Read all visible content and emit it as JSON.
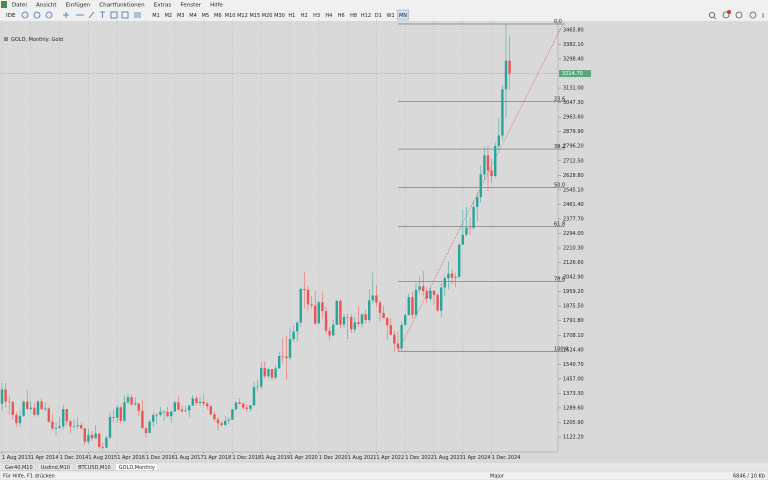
{
  "menu": [
    "Datei",
    "Ansicht",
    "Einfügen",
    "Chartfunktionen",
    "Extras",
    "Fenster",
    "Hilfe"
  ],
  "toolbar": {
    "ide": "IDE",
    "timeframes": [
      "M1",
      "M2",
      "M3",
      "M4",
      "M5",
      "M6",
      "M10",
      "M12",
      "M15",
      "M20",
      "M30",
      "H1",
      "H2",
      "H3",
      "H4",
      "H6",
      "H8",
      "H12",
      "D1",
      "W1",
      "MN"
    ],
    "active": 20
  },
  "tabs": [
    "Ger40,M10",
    "Usdind,M10",
    "BTCUSD,M10",
    "GOLD,Monthly"
  ],
  "active_tab": 3,
  "status": {
    "help": "Für Hilfe, F1 drücken",
    "profile": "Major",
    "traffic": "6846 / 10 Kb"
  },
  "chart_data": {
    "type": "candlestick",
    "title": "GOLD, Monthly:  Gold",
    "up_color": "#26a69a",
    "down_color": "#ef5350",
    "grid": true,
    "categories": [
      "1 Aug 2013",
      null,
      null,
      null,
      null,
      null,
      null,
      null,
      "1 Apr 2014",
      null,
      null,
      null,
      null,
      null,
      null,
      null,
      "1 Dec 2014",
      null,
      null,
      null,
      null,
      null,
      null,
      null,
      "1 Aug 2015",
      null,
      null,
      null,
      null,
      null,
      null,
      null,
      "1 Apr 2016",
      null,
      null,
      null,
      null,
      null,
      null,
      null,
      "1 Dec 2016",
      null,
      null,
      null,
      null,
      null,
      null,
      null,
      "1 Aug 2017",
      null,
      null,
      null,
      null,
      null,
      null,
      null,
      "1 Apr 2018",
      null,
      null,
      null,
      null,
      null,
      null,
      null,
      "1 Dec 2018",
      null,
      null,
      null,
      null,
      null,
      null,
      null,
      "1 Aug 2019",
      null,
      null,
      null,
      null,
      null,
      null,
      null,
      "1 Apr 2020",
      null,
      null,
      null,
      null,
      null,
      null,
      null,
      "1 Dec 2020",
      null,
      null,
      null,
      null,
      null,
      null,
      null,
      "1 Aug 2021",
      null,
      null,
      null,
      null,
      null,
      null,
      null,
      "1 Apr 2022",
      null,
      null,
      null,
      null,
      null,
      null,
      null,
      "1 Dec 2022",
      null,
      null,
      null,
      null,
      null,
      null,
      null,
      "1 Aug 2023",
      null,
      null,
      null,
      null,
      null,
      null,
      null,
      "1 Apr 2024",
      null,
      null,
      null,
      null,
      null,
      null,
      null,
      "1 Dec 2024",
      null,
      null,
      null,
      null,
      null
    ],
    "candles": [
      [
        1313,
        1433,
        1275,
        1396
      ],
      [
        1396,
        1434,
        1292,
        1326
      ],
      [
        1326,
        1361,
        1251,
        1323
      ],
      [
        1323,
        1330,
        1221,
        1250
      ],
      [
        1250,
        1267,
        1180,
        1202
      ],
      [
        1202,
        1280,
        1182,
        1244
      ],
      [
        1244,
        1332,
        1238,
        1326
      ],
      [
        1326,
        1392,
        1277,
        1284
      ],
      [
        1284,
        1331,
        1268,
        1291
      ],
      [
        1291,
        1315,
        1240,
        1250
      ],
      [
        1250,
        1332,
        1240,
        1327
      ],
      [
        1327,
        1345,
        1280,
        1282
      ],
      [
        1282,
        1322,
        1273,
        1287
      ],
      [
        1287,
        1294,
        1206,
        1210
      ],
      [
        1210,
        1256,
        1161,
        1171
      ],
      [
        1171,
        1208,
        1131,
        1175
      ],
      [
        1175,
        1239,
        1170,
        1184
      ],
      [
        1184,
        1307,
        1167,
        1283
      ],
      [
        1283,
        1285,
        1190,
        1213
      ],
      [
        1213,
        1224,
        1142,
        1183
      ],
      [
        1183,
        1224,
        1168,
        1184
      ],
      [
        1184,
        1232,
        1170,
        1190
      ],
      [
        1190,
        1205,
        1162,
        1172
      ],
      [
        1172,
        1175,
        1077,
        1095
      ],
      [
        1095,
        1170,
        1080,
        1134
      ],
      [
        1134,
        1157,
        1099,
        1115
      ],
      [
        1115,
        1191,
        1114,
        1142
      ],
      [
        1142,
        1143,
        1052,
        1065
      ],
      [
        1065,
        1088,
        1046,
        1061
      ],
      [
        1061,
        1128,
        1060,
        1118
      ],
      [
        1118,
        1263,
        1110,
        1238
      ],
      [
        1238,
        1283,
        1208,
        1233
      ],
      [
        1233,
        1304,
        1207,
        1293
      ],
      [
        1293,
        1303,
        1200,
        1215
      ],
      [
        1215,
        1362,
        1207,
        1322
      ],
      [
        1322,
        1375,
        1311,
        1351
      ],
      [
        1351,
        1367,
        1302,
        1309
      ],
      [
        1309,
        1353,
        1302,
        1316
      ],
      [
        1316,
        1318,
        1241,
        1273
      ],
      [
        1273,
        1337,
        1171,
        1173
      ],
      [
        1173,
        1180,
        1123,
        1146
      ],
      [
        1146,
        1220,
        1144,
        1211
      ],
      [
        1211,
        1264,
        1180,
        1249
      ],
      [
        1249,
        1261,
        1195,
        1249
      ],
      [
        1249,
        1295,
        1240,
        1268
      ],
      [
        1268,
        1275,
        1214,
        1268
      ],
      [
        1268,
        1296,
        1236,
        1242
      ],
      [
        1242,
        1274,
        1205,
        1269
      ],
      [
        1269,
        1331,
        1267,
        1322
      ],
      [
        1322,
        1357,
        1277,
        1280
      ],
      [
        1280,
        1306,
        1261,
        1271
      ],
      [
        1271,
        1298,
        1264,
        1275
      ],
      [
        1275,
        1307,
        1236,
        1303
      ],
      [
        1303,
        1366,
        1302,
        1345
      ],
      [
        1345,
        1362,
        1307,
        1318
      ],
      [
        1318,
        1356,
        1303,
        1325
      ],
      [
        1325,
        1366,
        1302,
        1315
      ],
      [
        1315,
        1326,
        1282,
        1299
      ],
      [
        1299,
        1309,
        1245,
        1253
      ],
      [
        1253,
        1266,
        1211,
        1224
      ],
      [
        1224,
        1237,
        1160,
        1201
      ],
      [
        1201,
        1214,
        1180,
        1192
      ],
      [
        1192,
        1243,
        1182,
        1215
      ],
      [
        1215,
        1237,
        1196,
        1222
      ],
      [
        1222,
        1284,
        1221,
        1282
      ],
      [
        1282,
        1326,
        1276,
        1321
      ],
      [
        1321,
        1346,
        1310,
        1313
      ],
      [
        1313,
        1324,
        1281,
        1292
      ],
      [
        1292,
        1310,
        1266,
        1284
      ],
      [
        1284,
        1306,
        1266,
        1305
      ],
      [
        1305,
        1439,
        1301,
        1409
      ],
      [
        1409,
        1453,
        1382,
        1413
      ],
      [
        1413,
        1555,
        1400,
        1520
      ],
      [
        1520,
        1557,
        1459,
        1472
      ],
      [
        1472,
        1517,
        1459,
        1513
      ],
      [
        1513,
        1516,
        1445,
        1464
      ],
      [
        1464,
        1535,
        1454,
        1517
      ],
      [
        1517,
        1611,
        1517,
        1589
      ],
      [
        1589,
        1689,
        1547,
        1585
      ],
      [
        1585,
        1704,
        1451,
        1577
      ],
      [
        1577,
        1748,
        1567,
        1686
      ],
      [
        1686,
        1765,
        1670,
        1730
      ],
      [
        1730,
        1789,
        1671,
        1781
      ],
      [
        1781,
        1984,
        1757,
        1975
      ],
      [
        1975,
        2075,
        1863,
        1968
      ],
      [
        1968,
        1992,
        1849,
        1886
      ],
      [
        1886,
        1933,
        1860,
        1879
      ],
      [
        1879,
        1966,
        1764,
        1776
      ],
      [
        1776,
        1906,
        1775,
        1898
      ],
      [
        1898,
        1959,
        1802,
        1847
      ],
      [
        1847,
        1872,
        1717,
        1734
      ],
      [
        1734,
        1755,
        1677,
        1707
      ],
      [
        1707,
        1798,
        1705,
        1769
      ],
      [
        1769,
        1913,
        1765,
        1906
      ],
      [
        1906,
        1917,
        1750,
        1770
      ],
      [
        1770,
        1832,
        1751,
        1814
      ],
      [
        1814,
        1834,
        1688,
        1813
      ],
      [
        1813,
        1834,
        1721,
        1742
      ],
      [
        1742,
        1814,
        1721,
        1783
      ],
      [
        1783,
        1877,
        1758,
        1774
      ],
      [
        1774,
        1831,
        1753,
        1829
      ],
      [
        1829,
        1853,
        1780,
        1796
      ],
      [
        1796,
        1974,
        1781,
        1909
      ],
      [
        1909,
        2070,
        1890,
        1937
      ],
      [
        1937,
        1998,
        1872,
        1896
      ],
      [
        1896,
        1910,
        1787,
        1837
      ],
      [
        1837,
        1879,
        1805,
        1807
      ],
      [
        1807,
        1814,
        1681,
        1766
      ],
      [
        1766,
        1808,
        1709,
        1711
      ],
      [
        1711,
        1735,
        1615,
        1660
      ],
      [
        1660,
        1730,
        1617,
        1633
      ],
      [
        1633,
        1786,
        1617,
        1768
      ],
      [
        1768,
        1833,
        1765,
        1824
      ],
      [
        1824,
        1949,
        1823,
        1928
      ],
      [
        1928,
        1960,
        1804,
        1826
      ],
      [
        1826,
        2009,
        1810,
        1969
      ],
      [
        1969,
        2048,
        1950,
        1990
      ],
      [
        1990,
        2079,
        1932,
        1962
      ],
      [
        1962,
        1985,
        1893,
        1919
      ],
      [
        1919,
        1987,
        1903,
        1965
      ],
      [
        1965,
        1966,
        1884,
        1940
      ],
      [
        1940,
        1953,
        1846,
        1849
      ],
      [
        1849,
        2009,
        1810,
        1983
      ],
      [
        1983,
        2052,
        1931,
        2036
      ],
      [
        2036,
        2135,
        1973,
        2063
      ],
      [
        2063,
        2088,
        2002,
        2039
      ],
      [
        2039,
        2065,
        1985,
        2044
      ],
      [
        2044,
        2236,
        2039,
        2230
      ],
      [
        2230,
        2431,
        2228,
        2286
      ],
      [
        2286,
        2450,
        2277,
        2327
      ],
      [
        2327,
        2387,
        2286,
        2326
      ],
      [
        2326,
        2483,
        2318,
        2447
      ],
      [
        2447,
        2531,
        2364,
        2503
      ],
      [
        2503,
        2685,
        2471,
        2634
      ],
      [
        2634,
        2790,
        2603,
        2744
      ],
      [
        2744,
        2801,
        2537,
        2657
      ],
      [
        2657,
        2726,
        2583,
        2625
      ],
      [
        2625,
        2817,
        2614,
        2798
      ],
      [
        2798,
        2956,
        2773,
        2858
      ],
      [
        2858,
        3148,
        2833,
        3124
      ],
      [
        3124,
        3500,
        2957,
        3289
      ],
      [
        3289,
        3435,
        3121,
        3214
      ]
    ],
    "ylim": [
      1036,
      3523
    ],
    "yticks": [
      {
        "value": 1122.2,
        "label": "1122.20"
      },
      {
        "value": 1205.9,
        "label": "1205.90"
      },
      {
        "value": 1289.6,
        "label": "1289.60"
      },
      {
        "value": 1373.3,
        "label": "1373.30"
      },
      {
        "value": 1457,
        "label": "1457.00"
      },
      {
        "value": 1540.7,
        "label": "1540.70"
      },
      {
        "value": 1624.4,
        "label": "1624.40"
      },
      {
        "value": 1708.1,
        "label": "1708.10"
      },
      {
        "value": 1791.8,
        "label": "1791.80"
      },
      {
        "value": 1875.5,
        "label": "1875.50"
      },
      {
        "value": 1959.2,
        "label": "1959.20"
      },
      {
        "value": 2042.9,
        "label": "2042.90"
      },
      {
        "value": 2126.6,
        "label": "2126.60"
      },
      {
        "value": 2210.3,
        "label": "2210.30"
      },
      {
        "value": 2294,
        "label": "2294.00"
      },
      {
        "value": 2377.7,
        "label": "2377.70"
      },
      {
        "value": 2461.4,
        "label": "2461.40"
      },
      {
        "value": 2545.1,
        "label": "2545.10"
      },
      {
        "value": 2628.8,
        "label": "2628.80"
      },
      {
        "value": 2712.5,
        "label": "2712.50"
      },
      {
        "value": 2796.2,
        "label": "2796.20"
      },
      {
        "value": 2879.9,
        "label": "2879.90"
      },
      {
        "value": 2963.6,
        "label": "2963.60"
      },
      {
        "value": 3047.3,
        "label": "3047.30"
      },
      {
        "value": 3131,
        "label": "3131.00"
      },
      {
        "value": 3298.4,
        "label": "3298.40"
      },
      {
        "value": 3382.1,
        "label": "3382.10"
      },
      {
        "value": 3465.8,
        "label": "3465.80"
      }
    ],
    "bid": {
      "value": 3214.7,
      "label": "3214.70"
    },
    "fibonacci": {
      "levels": [
        "0.0",
        "23.6",
        "38.2",
        "50.0",
        "61.8",
        "78.6",
        "100.0"
      ],
      "values": [
        3500,
        3055,
        2780,
        2557.5,
        2335,
        2018,
        1615
      ],
      "start": 110
    }
  }
}
